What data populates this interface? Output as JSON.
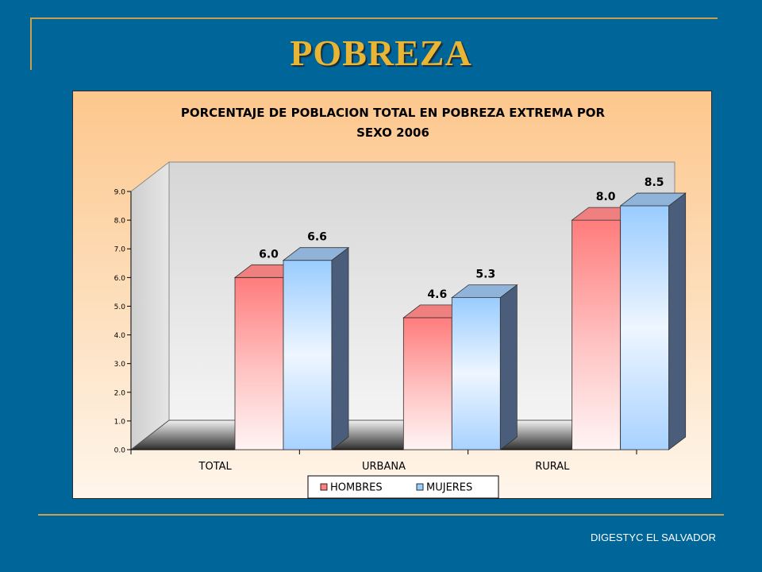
{
  "slide": {
    "title": "POBREZA",
    "footer": "DIGESTYC EL SALVADOR"
  },
  "colors": {
    "background": "#006599",
    "accent_lines": "#c8a04a",
    "title_text": "#e8b634",
    "hombres": "#ff8080",
    "mujeres": "#99ccff"
  },
  "chart_data": {
    "type": "bar",
    "title_lines": [
      "PORCENTAJE DE POBLACION TOTAL EN POBREZA EXTREMA POR",
      "SEXO 2006"
    ],
    "categories": [
      "TOTAL",
      "URBANA",
      "RURAL"
    ],
    "series": [
      {
        "name": "HOMBRES",
        "values": [
          6.0,
          4.6,
          8.0
        ],
        "labels": [
          "6.0",
          "4.6",
          "8.0"
        ]
      },
      {
        "name": "MUJERES",
        "values": [
          6.6,
          5.3,
          8.5
        ],
        "labels": [
          "6.6",
          "5.3",
          "8.5"
        ]
      }
    ],
    "ylim": [
      0,
      9
    ],
    "yticks": [
      "0.0",
      "1.0",
      "2.0",
      "3.0",
      "4.0",
      "5.0",
      "6.0",
      "7.0",
      "8.0",
      "9.0"
    ],
    "xlabel": "",
    "ylabel": "",
    "grid": false,
    "legend_position": "bottom",
    "style": "3d clustered column"
  }
}
